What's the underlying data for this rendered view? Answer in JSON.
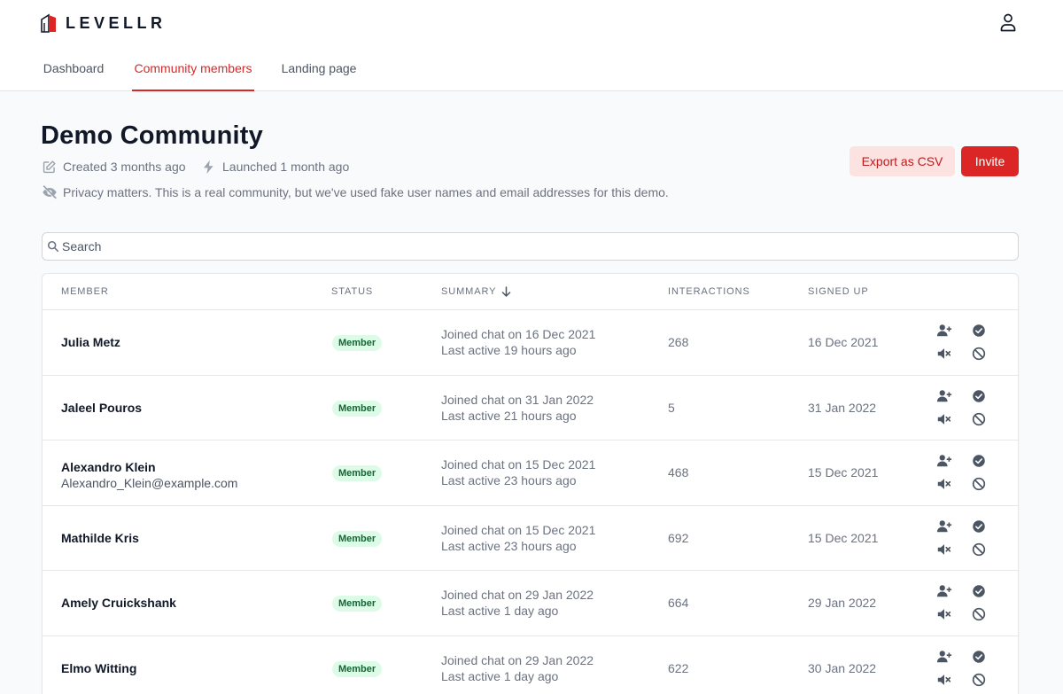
{
  "app": {
    "brand": "LEVELLR",
    "colors": {
      "accent": "#dc2626",
      "accent_soft": "#fde2e2",
      "badge_bg": "#dcfce7",
      "badge_text": "#166534"
    },
    "user_icon": "user-icon"
  },
  "nav": {
    "tabs": [
      {
        "label": "Dashboard",
        "active": false
      },
      {
        "label": "Community members",
        "active": true
      },
      {
        "label": "Landing page",
        "active": false
      }
    ]
  },
  "community": {
    "title": "Demo Community",
    "created": "Created 3 months ago",
    "launched": "Launched 1 month ago",
    "privacy_note": "Privacy matters. This is a real community, but we've used fake user names and email addresses for this demo.",
    "icons": {
      "created": "pencil-square-icon",
      "launched": "lightning-bolt-icon",
      "privacy": "eye-off-icon"
    }
  },
  "actions": {
    "export_label": "Export as CSV",
    "invite_label": "Invite"
  },
  "search": {
    "placeholder": "Search",
    "value": ""
  },
  "table": {
    "columns": {
      "member": "Member",
      "status": "Status",
      "summary": "Summary",
      "interactions": "Interactions",
      "signed_up": "Signed up"
    },
    "sort": {
      "column": "summary",
      "direction": "descending"
    },
    "row_action_icons": [
      "user-plus-icon",
      "check-badge-icon",
      "mute-icon",
      "ban-icon"
    ],
    "rows": [
      {
        "name": "Julia Metz",
        "email": "",
        "status": "Member",
        "joined": "Joined chat on 16 Dec 2021",
        "last_active": "Last active 19 hours ago",
        "interactions": "268",
        "signed_up": "16 Dec 2021"
      },
      {
        "name": "Jaleel Pouros",
        "email": "",
        "status": "Member",
        "joined": "Joined chat on 31 Jan 2022",
        "last_active": "Last active 21 hours ago",
        "interactions": "5",
        "signed_up": "31 Jan 2022"
      },
      {
        "name": "Alexandro Klein",
        "email": "Alexandro_Klein@example.com",
        "status": "Member",
        "joined": "Joined chat on 15 Dec 2021",
        "last_active": "Last active 23 hours ago",
        "interactions": "468",
        "signed_up": "15 Dec 2021"
      },
      {
        "name": "Mathilde Kris",
        "email": "",
        "status": "Member",
        "joined": "Joined chat on 15 Dec 2021",
        "last_active": "Last active 23 hours ago",
        "interactions": "692",
        "signed_up": "15 Dec 2021"
      },
      {
        "name": "Amely Cruickshank",
        "email": "",
        "status": "Member",
        "joined": "Joined chat on 29 Jan 2022",
        "last_active": "Last active 1 day ago",
        "interactions": "664",
        "signed_up": "29 Jan 2022"
      },
      {
        "name": "Elmo Witting",
        "email": "",
        "status": "Member",
        "joined": "Joined chat on 29 Jan 2022",
        "last_active": "Last active 1 day ago",
        "interactions": "622",
        "signed_up": "30 Jan 2022"
      }
    ]
  }
}
